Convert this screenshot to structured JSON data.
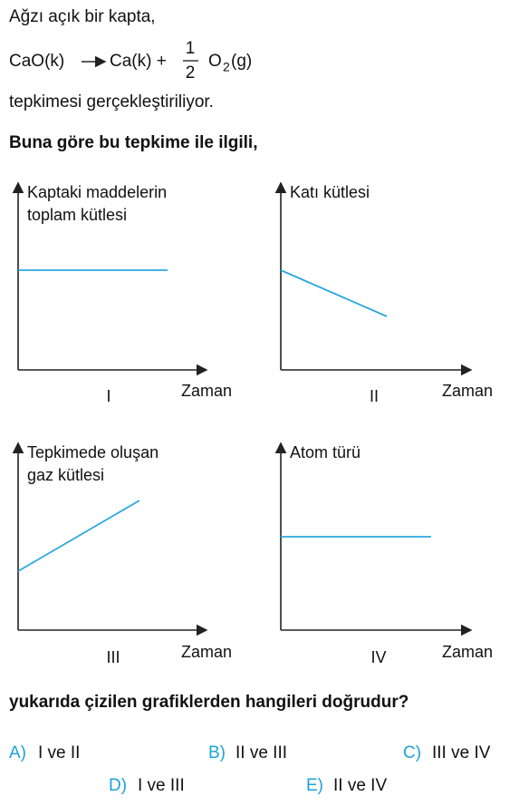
{
  "question": {
    "intro": "Ağzı açık bir kapta,",
    "equation": {
      "reactant": "CaO(k)",
      "product": "Ca(k) +",
      "numerator": "1",
      "denominator": "2",
      "gas": "O",
      "subscript": "2",
      "state": "(g)"
    },
    "statement": "tepkimesi gerçekleştiriliyor.",
    "prompt": "Buna göre bu tepkime ile ilgili,",
    "graphs": [
      {
        "y_label": [
          "Kaptaki maddelerin",
          "toplam kütlesi"
        ],
        "x_label": "Zaman",
        "numeral": "I"
      },
      {
        "y_label": [
          "Katı kütlesi"
        ],
        "x_label": "Zaman",
        "numeral": "II"
      },
      {
        "y_label": [
          "Tepkimede oluşan",
          "gaz kütlesi"
        ],
        "x_label": "Zaman",
        "numeral": "III"
      },
      {
        "y_label": [
          "Atom türü"
        ],
        "x_label": "Zaman",
        "numeral": "IV"
      }
    ],
    "ask": "yukarıda çizilen grafiklerden hangileri doğrudur?",
    "options": [
      {
        "letter": "A)",
        "text": "I ve II"
      },
      {
        "letter": "B)",
        "text": "II ve III"
      },
      {
        "letter": "C)",
        "text": "III ve IV"
      },
      {
        "letter": "D)",
        "text": "I ve III"
      },
      {
        "letter": "E)",
        "text": "II ve IV"
      }
    ]
  }
}
